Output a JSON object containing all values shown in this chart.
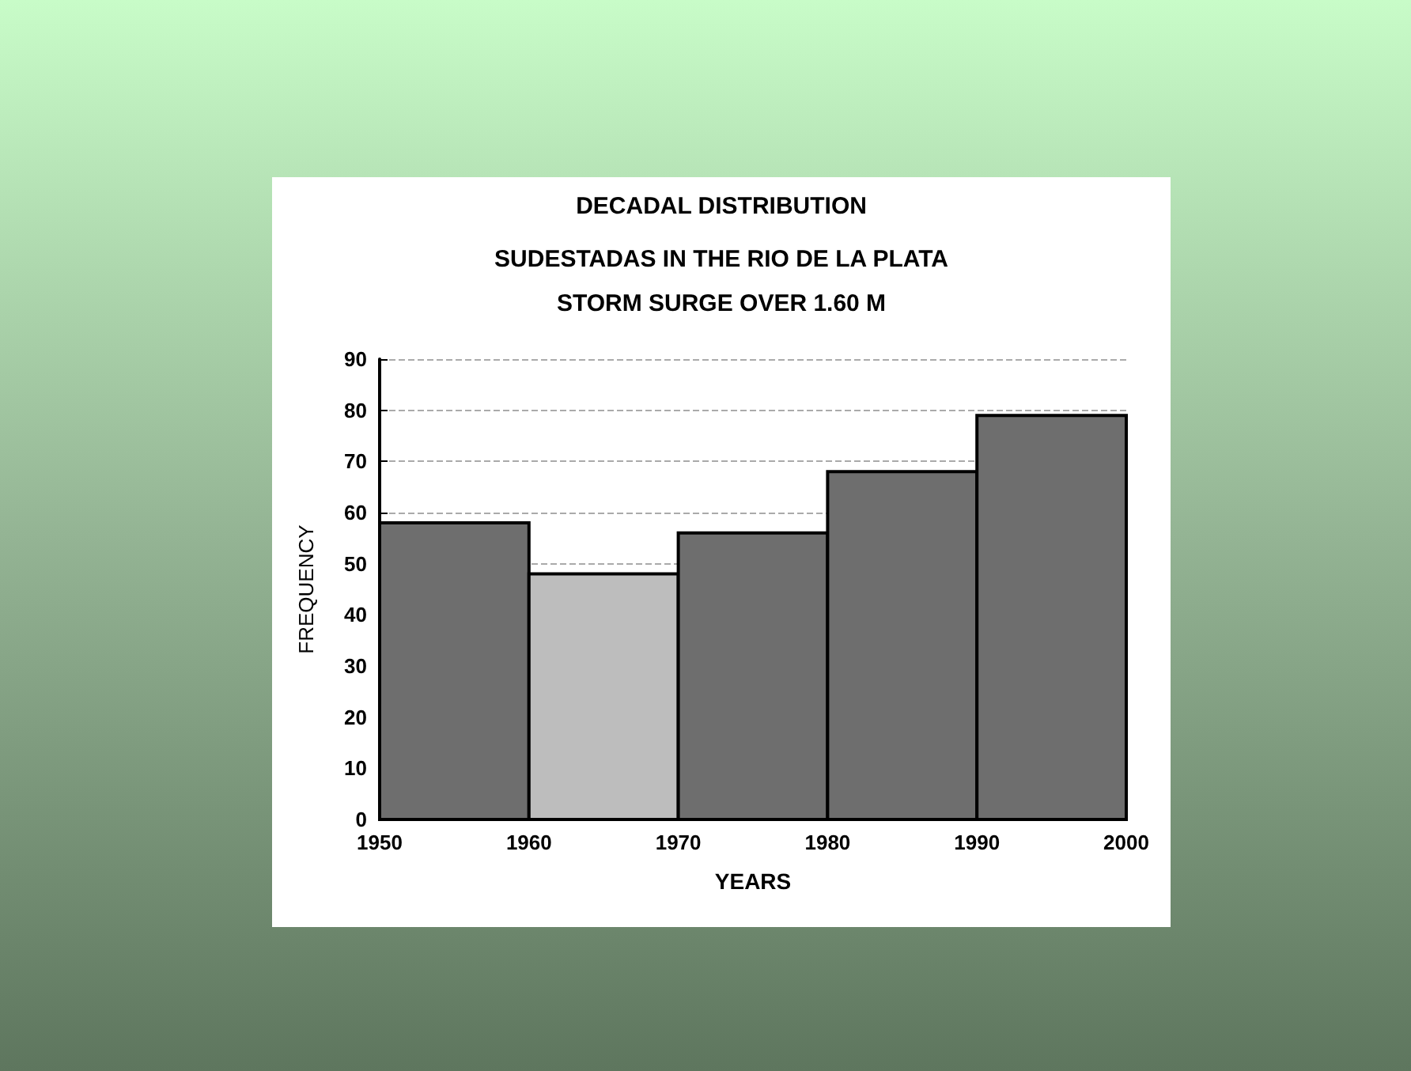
{
  "chart_data": {
    "type": "histogram",
    "title": "DECADAL DISTRIBUTION",
    "subtitle": "SUDESTADAS IN THE RIO DE LA PLATA\nSTORM SURGE OVER 1.60 M",
    "xlabel": "YEARS",
    "ylabel": "FREQUENCY",
    "bins": [
      1950,
      1960,
      1970,
      1980,
      1990,
      2000
    ],
    "values": [
      58,
      48,
      56,
      68,
      79
    ],
    "colors": [
      "#6e6e6e",
      "#bdbdbd",
      "#6e6e6e",
      "#6e6e6e",
      "#6e6e6e"
    ],
    "xlim": [
      1950,
      2000
    ],
    "xticks": [
      1950,
      1960,
      1970,
      1980,
      1990,
      2000
    ],
    "ylim": [
      0,
      90
    ],
    "yticks": [
      0,
      10,
      20,
      30,
      40,
      50,
      60,
      70,
      80,
      90
    ],
    "grid": "y"
  }
}
